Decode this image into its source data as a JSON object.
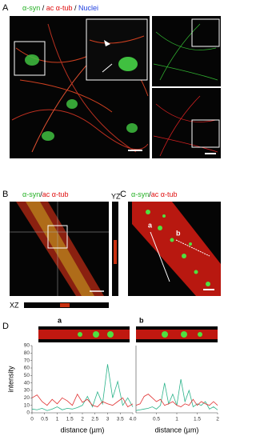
{
  "figure": {
    "panel_a": {
      "letter": "A",
      "label": [
        {
          "text": "α-syn",
          "color": "#22b022"
        },
        {
          "text": " / ",
          "color": "#000000"
        },
        {
          "text": "ac α-tub",
          "color": "#e01010"
        },
        {
          "text": " / ",
          "color": "#000000"
        },
        {
          "text": "Nuclei",
          "color": "#2040e0"
        }
      ]
    },
    "panel_b": {
      "letter": "B",
      "label": [
        {
          "text": "α-syn",
          "color": "#22b022"
        },
        {
          "text": "/",
          "color": "#000000"
        },
        {
          "text": "ac α-tub",
          "color": "#e01010"
        }
      ],
      "yz": "YZ",
      "xz": "XZ"
    },
    "panel_c": {
      "letter": "C",
      "label": [
        {
          "text": "α-syn",
          "color": "#22b022"
        },
        {
          "text": "/",
          "color": "#000000"
        },
        {
          "text": "ac α-tub",
          "color": "#e01010"
        }
      ],
      "line_a": "a",
      "line_b": "b"
    },
    "panel_d": {
      "letter": "D",
      "strip_a": "a",
      "strip_b": "b",
      "ylabel": "intensity"
    }
  },
  "chart_data": [
    {
      "type": "line",
      "xlabel": "distance (µm)",
      "x": [
        0,
        0.2,
        0.4,
        0.6,
        0.8,
        1,
        1.2,
        1.4,
        1.6,
        1.8,
        2,
        2.2,
        2.4,
        2.6,
        2.8,
        3,
        3.2,
        3.4,
        3.6,
        3.8,
        4
      ],
      "series": [
        {
          "color": "#2bb38a",
          "values": [
            5,
            4,
            6,
            3,
            5,
            8,
            4,
            6,
            5,
            7,
            10,
            22,
            8,
            28,
            12,
            65,
            20,
            42,
            10,
            20,
            8
          ]
        },
        {
          "color": "#e03030",
          "values": [
            20,
            24,
            15,
            10,
            18,
            12,
            20,
            16,
            10,
            25,
            14,
            18,
            10,
            8,
            15,
            12,
            10,
            15,
            20,
            8,
            12
          ]
        }
      ],
      "xlim": [
        0,
        4
      ],
      "xticks": [
        0,
        0.5,
        1,
        1.5,
        2,
        2.5,
        3,
        3.5,
        {
          "value": 4,
          "label": "4.0"
        }
      ],
      "ylim": [
        0,
        90
      ],
      "yticks": [
        0,
        10,
        20,
        30,
        40,
        50,
        60,
        70,
        80,
        90
      ]
    },
    {
      "type": "line",
      "xlabel": "distance (µm)",
      "x": [
        0,
        0.1,
        0.2,
        0.3,
        0.4,
        0.5,
        0.6,
        0.7,
        0.8,
        0.9,
        1,
        1.1,
        1.2,
        1.3,
        1.4,
        1.5,
        1.6,
        1.7,
        1.8,
        1.9,
        2
      ],
      "series": [
        {
          "color": "#2bb38a",
          "values": [
            3,
            4,
            5,
            6,
            8,
            5,
            10,
            40,
            12,
            25,
            10,
            45,
            15,
            30,
            8,
            12,
            10,
            15,
            5,
            8,
            4
          ]
        },
        {
          "color": "#e03030",
          "values": [
            10,
            12,
            22,
            25,
            20,
            15,
            18,
            10,
            12,
            15,
            10,
            8,
            12,
            10,
            18,
            10,
            15,
            12,
            10,
            15,
            10
          ]
        }
      ],
      "xlim": [
        0,
        2
      ],
      "xticks": [
        0.5,
        1,
        1.5,
        2
      ],
      "ylim": [
        0,
        90
      ]
    }
  ]
}
